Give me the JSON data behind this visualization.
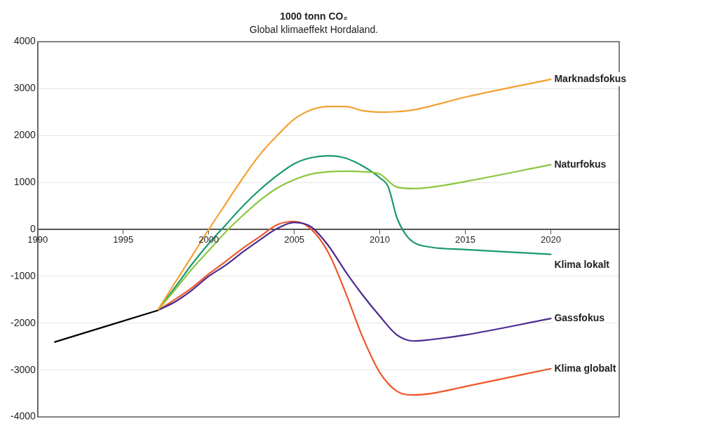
{
  "chart_data": {
    "type": "line",
    "title": "1000 tonn CO₂",
    "subtitle": "Global klimaeffekt Hordaland.",
    "xlim": [
      1990,
      2024
    ],
    "xticks": [
      1990,
      1995,
      2000,
      2005,
      2010,
      2015,
      2020
    ],
    "ylim": [
      -4000,
      4000
    ],
    "yticks": [
      -4000,
      -3000,
      -2000,
      -1000,
      0,
      1000,
      2000,
      3000,
      4000
    ],
    "grid": "y",
    "legend": false,
    "marker": "none",
    "line_style": "solid",
    "series": [
      {
        "color": "#000000",
        "x": [
          1991,
          1997
        ],
        "values": [
          -2400,
          -1730
        ]
      },
      {
        "name": "Marknadsfokus",
        "color": "#f5a033",
        "x": [
          1997,
          1998,
          1999,
          2000,
          2001,
          2002,
          2003,
          2004,
          2005,
          2006,
          2007,
          2008,
          2009,
          2010,
          2011,
          2012,
          2015,
          2020
        ],
        "values": [
          -1730,
          -1150,
          -580,
          0,
          550,
          1100,
          1600,
          2000,
          2350,
          2550,
          2620,
          2620,
          2530,
          2500,
          2510,
          2550,
          2820,
          3200
        ]
      },
      {
        "name": "Naturfokus",
        "color": "#8cc63f",
        "x": [
          1997,
          1998,
          1999,
          2000,
          2001,
          2002,
          2003,
          2004,
          2005,
          2006,
          2007,
          2008,
          2009,
          2010,
          2011,
          2012,
          2013,
          2015,
          2020
        ],
        "values": [
          -1730,
          -1300,
          -850,
          -450,
          -50,
          300,
          620,
          880,
          1060,
          1180,
          1230,
          1240,
          1230,
          1180,
          900,
          870,
          900,
          1020,
          1380
        ]
      },
      {
        "name": "Klima lokalt",
        "color": "#1a9a6a",
        "x": [
          1997,
          1998,
          1999,
          2000,
          2001,
          2002,
          2003,
          2004,
          2005,
          2006,
          2007,
          2008,
          2009,
          2010,
          2010.5,
          2011,
          2011.5,
          2012,
          2013,
          2015,
          2020
        ],
        "values": [
          -1730,
          -1250,
          -750,
          -300,
          100,
          500,
          850,
          1150,
          1400,
          1530,
          1570,
          1520,
          1350,
          1100,
          900,
          250,
          -100,
          -280,
          -380,
          -430,
          -530
        ]
      },
      {
        "name": "Gassfokus",
        "color": "#4b2a90",
        "x": [
          1997,
          1998,
          1999,
          2000,
          2001,
          2002,
          2003,
          2004,
          2005,
          2006,
          2007,
          2008,
          2009,
          2010,
          2011,
          2012,
          2013,
          2015,
          2020
        ],
        "values": [
          -1730,
          -1550,
          -1300,
          -1000,
          -760,
          -480,
          -220,
          20,
          150,
          50,
          -350,
          -900,
          -1400,
          -1850,
          -2250,
          -2380,
          -2350,
          -2250,
          -1900
        ]
      },
      {
        "name": "Klima globalt",
        "color": "#f0562a",
        "x": [
          1997,
          1998,
          1999,
          2000,
          2001,
          2002,
          2003,
          2004,
          2005,
          2006,
          2007,
          2008,
          2009,
          2010,
          2011,
          2012,
          2013,
          2015,
          2020
        ],
        "values": [
          -1730,
          -1500,
          -1250,
          -950,
          -680,
          -400,
          -150,
          100,
          170,
          0,
          -500,
          -1350,
          -2300,
          -3050,
          -3450,
          -3530,
          -3500,
          -3350,
          -2970
        ]
      }
    ]
  }
}
